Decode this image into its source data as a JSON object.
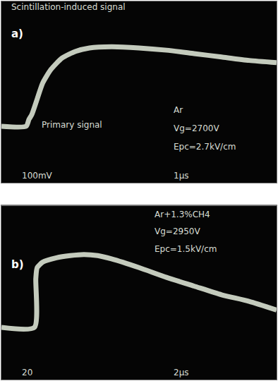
{
  "chart_data": [
    {
      "type": "line",
      "title": "a)",
      "annotations": [
        "Scintillation-induced signal",
        "Primary signal",
        "Ar",
        "Vg=2700V",
        "Epc=2.7kV/cm",
        "100mV",
        "1µs"
      ],
      "x": [
        0,
        0.9,
        1.0,
        1.1,
        1.3,
        1.5,
        1.8,
        2.2,
        2.7,
        3.2,
        4,
        5,
        6,
        7,
        8,
        9,
        10
      ],
      "values": [
        0,
        0,
        30,
        50,
        120,
        190,
        250,
        300,
        330,
        345,
        350,
        345,
        335,
        320,
        305,
        290,
        280
      ],
      "xlim": [
        0,
        10
      ],
      "ylim": [
        -250,
        550
      ],
      "xticks": [],
      "yticks": [],
      "tick_labels": false,
      "grid": false,
      "color": "#e6eede",
      "line_style": "solid"
    },
    {
      "type": "line",
      "title": "b)",
      "annotations": [
        "Ar+1.3%CH4",
        "Vg=2950V",
        "Epc=1.5kV/cm",
        "20",
        "2µs"
      ],
      "x": [
        0,
        2.4,
        2.5,
        2.6,
        3,
        4,
        5,
        6,
        7,
        8,
        10,
        12,
        14,
        16,
        18,
        20
      ],
      "values": [
        0,
        0,
        45,
        55,
        60,
        64,
        66,
        67,
        66,
        63,
        55,
        46,
        38,
        30,
        24,
        16
      ],
      "xlim": [
        0,
        20
      ],
      "ylim": [
        -48,
        112
      ],
      "xticks": [],
      "yticks": [],
      "tick_labels": false,
      "grid": false,
      "color": "#e6eede",
      "line_style": "solid"
    }
  ]
}
